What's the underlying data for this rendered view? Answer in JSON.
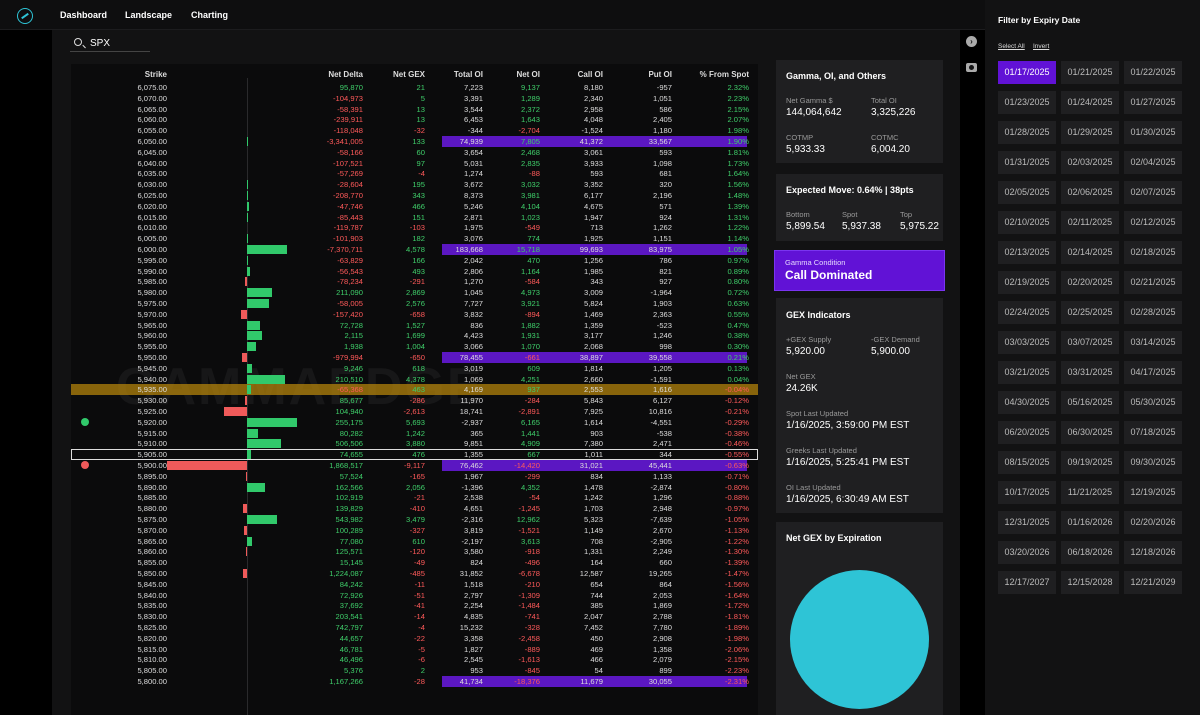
{
  "nav": {
    "tabs": [
      "Dashboard",
      "Landscape",
      "Charting"
    ]
  },
  "search": {
    "value": "SPX"
  },
  "table": {
    "headers": {
      "strike": "Strike",
      "net_delta": "Net Delta",
      "net_gex": "Net GEX",
      "total_oi": "Total OI",
      "net_oi": "Net OI",
      "call_oi": "Call OI",
      "put_oi": "Put OI",
      "pct_from_spot": "% From Spot"
    },
    "watermark": "GAMMAEDGE",
    "rows": [
      {
        "strike": "6,075.00",
        "nd": "95,870",
        "gex": "21",
        "toi": "7,223",
        "noi": "9,137",
        "coi": "8,180",
        "poi": "-957",
        "pct": "2.32%",
        "bar": 0
      },
      {
        "strike": "6,070.00",
        "nd": "-104,973",
        "gex": "5",
        "toi": "3,391",
        "noi": "1,289",
        "coi": "2,340",
        "poi": "1,051",
        "pct": "2.23%",
        "bar": 0
      },
      {
        "strike": "6,065.00",
        "nd": "-58,391",
        "gex": "13",
        "toi": "3,544",
        "noi": "2,372",
        "coi": "2,958",
        "poi": "586",
        "pct": "2.15%",
        "bar": 0
      },
      {
        "strike": "6,060.00",
        "nd": "-239,911",
        "gex": "13",
        "toi": "6,453",
        "noi": "1,643",
        "coi": "4,048",
        "poi": "2,405",
        "pct": "2.07%",
        "bar": 0
      },
      {
        "strike": "6,055.00",
        "nd": "-118,048",
        "gex": "-32",
        "toi": "-344",
        "noi": "-2,704",
        "coi": "-1,524",
        "poi": "1,180",
        "pct": "1.98%",
        "bar": 0
      },
      {
        "strike": "6,050.00",
        "nd": "-3,341,005",
        "gex": "133",
        "toi": "74,939",
        "noi": "7,805",
        "coi": "41,372",
        "poi": "33,567",
        "pct": "1.90%",
        "bar": 1,
        "hl": "purple"
      },
      {
        "strike": "6,045.00",
        "nd": "-58,166",
        "gex": "60",
        "toi": "3,654",
        "noi": "2,468",
        "coi": "3,061",
        "poi": "593",
        "pct": "1.81%",
        "bar": 0
      },
      {
        "strike": "6,040.00",
        "nd": "-107,521",
        "gex": "97",
        "toi": "5,031",
        "noi": "2,835",
        "coi": "3,933",
        "poi": "1,098",
        "pct": "1.73%",
        "bar": 0
      },
      {
        "strike": "6,035.00",
        "nd": "-57,269",
        "gex": "-4",
        "toi": "1,274",
        "noi": "-88",
        "coi": "593",
        "poi": "681",
        "pct": "1.64%",
        "bar": 0
      },
      {
        "strike": "6,030.00",
        "nd": "-28,604",
        "gex": "195",
        "toi": "3,672",
        "noi": "3,032",
        "coi": "3,352",
        "poi": "320",
        "pct": "1.56%",
        "bar": 1
      },
      {
        "strike": "6,025.00",
        "nd": "-208,770",
        "gex": "343",
        "toi": "8,373",
        "noi": "3,981",
        "coi": "6,177",
        "poi": "2,196",
        "pct": "1.48%",
        "bar": 1
      },
      {
        "strike": "6,020.00",
        "nd": "-47,746",
        "gex": "466",
        "toi": "5,246",
        "noi": "4,104",
        "coi": "4,675",
        "poi": "571",
        "pct": "1.39%",
        "bar": 2
      },
      {
        "strike": "6,015.00",
        "nd": "-85,443",
        "gex": "151",
        "toi": "2,871",
        "noi": "1,023",
        "coi": "1,947",
        "poi": "924",
        "pct": "1.31%",
        "bar": 1
      },
      {
        "strike": "6,010.00",
        "nd": "-119,787",
        "gex": "-103",
        "toi": "1,975",
        "noi": "-549",
        "coi": "713",
        "poi": "1,262",
        "pct": "1.22%",
        "bar": 0
      },
      {
        "strike": "6,005.00",
        "nd": "-101,903",
        "gex": "182",
        "toi": "3,076",
        "noi": "774",
        "coi": "1,925",
        "poi": "1,151",
        "pct": "1.14%",
        "bar": 1
      },
      {
        "strike": "6,000.00",
        "nd": "-7,370,711",
        "gex": "4,578",
        "toi": "183,668",
        "noi": "15,718",
        "coi": "99,693",
        "poi": "83,975",
        "pct": "1.05%",
        "bar": 40,
        "hl": "purple"
      },
      {
        "strike": "5,995.00",
        "nd": "-63,829",
        "gex": "166",
        "toi": "2,042",
        "noi": "470",
        "coi": "1,256",
        "poi": "786",
        "pct": "0.97%",
        "bar": 1
      },
      {
        "strike": "5,990.00",
        "nd": "-56,543",
        "gex": "493",
        "toi": "2,806",
        "noi": "1,164",
        "coi": "1,985",
        "poi": "821",
        "pct": "0.89%",
        "bar": 3
      },
      {
        "strike": "5,985.00",
        "nd": "-78,234",
        "gex": "-291",
        "toi": "1,270",
        "noi": "-584",
        "coi": "343",
        "poi": "927",
        "pct": "0.80%",
        "bar": -2
      },
      {
        "strike": "5,980.00",
        "nd": "211,090",
        "gex": "2,869",
        "toi": "1,045",
        "noi": "4,973",
        "coi": "3,009",
        "poi": "-1,964",
        "pct": "0.72%",
        "bar": 25
      },
      {
        "strike": "5,975.00",
        "nd": "-58,005",
        "gex": "2,576",
        "toi": "7,727",
        "noi": "3,921",
        "coi": "5,824",
        "poi": "1,903",
        "pct": "0.63%",
        "bar": 22
      },
      {
        "strike": "5,970.00",
        "nd": "-157,420",
        "gex": "-658",
        "toi": "3,832",
        "noi": "-894",
        "coi": "1,469",
        "poi": "2,363",
        "pct": "0.55%",
        "bar": -6
      },
      {
        "strike": "5,965.00",
        "nd": "72,728",
        "gex": "1,527",
        "toi": "836",
        "noi": "1,882",
        "coi": "1,359",
        "poi": "-523",
        "pct": "0.47%",
        "bar": 13
      },
      {
        "strike": "5,960.00",
        "nd": "2,115",
        "gex": "1,699",
        "toi": "4,423",
        "noi": "1,931",
        "coi": "3,177",
        "poi": "1,246",
        "pct": "0.38%",
        "bar": 15
      },
      {
        "strike": "5,955.00",
        "nd": "1,938",
        "gex": "1,004",
        "toi": "3,066",
        "noi": "1,070",
        "coi": "2,068",
        "poi": "998",
        "pct": "0.30%",
        "bar": 9
      },
      {
        "strike": "5,950.00",
        "nd": "-979,994",
        "gex": "-650",
        "toi": "78,455",
        "noi": "-661",
        "coi": "38,897",
        "poi": "39,558",
        "pct": "0.21%",
        "bar": -5,
        "hl": "purple"
      },
      {
        "strike": "5,945.00",
        "nd": "9,246",
        "gex": "618",
        "toi": "3,019",
        "noi": "609",
        "coi": "1,814",
        "poi": "1,205",
        "pct": "0.13%",
        "bar": 5
      },
      {
        "strike": "5,940.00",
        "nd": "210,510",
        "gex": "4,378",
        "toi": "1,069",
        "noi": "4,251",
        "coi": "2,660",
        "poi": "-1,591",
        "pct": "0.04%",
        "bar": 38
      },
      {
        "strike": "5,935.00",
        "nd": "-65,368",
        "gex": "463",
        "toi": "4,169",
        "noi": "937",
        "coi": "2,553",
        "poi": "1,616",
        "pct": "-0.04%",
        "bar": 4,
        "hl": "gold"
      },
      {
        "strike": "5,930.00",
        "nd": "85,677",
        "gex": "-286",
        "toi": "11,970",
        "noi": "-284",
        "coi": "5,843",
        "poi": "6,127",
        "pct": "-0.12%",
        "bar": -2
      },
      {
        "strike": "5,925.00",
        "nd": "104,940",
        "gex": "-2,613",
        "toi": "18,741",
        "noi": "-2,891",
        "coi": "7,925",
        "poi": "10,816",
        "pct": "-0.21%",
        "bar": -23
      },
      {
        "strike": "5,920.00",
        "nd": "255,175",
        "gex": "5,693",
        "toi": "-2,937",
        "noi": "6,165",
        "coi": "1,614",
        "poi": "-4,551",
        "pct": "-0.29%",
        "bar": 50,
        "dot": "green"
      },
      {
        "strike": "5,915.00",
        "nd": "80,282",
        "gex": "1,242",
        "toi": "365",
        "noi": "1,441",
        "coi": "903",
        "poi": "-538",
        "pct": "-0.38%",
        "bar": 11
      },
      {
        "strike": "5,910.00",
        "nd": "506,506",
        "gex": "3,880",
        "toi": "9,851",
        "noi": "4,909",
        "coi": "7,380",
        "poi": "2,471",
        "pct": "-0.46%",
        "bar": 34
      },
      {
        "strike": "5,905.00",
        "nd": "74,655",
        "gex": "476",
        "toi": "1,355",
        "noi": "667",
        "coi": "1,011",
        "poi": "344",
        "pct": "-0.55%",
        "bar": 4,
        "box": true
      },
      {
        "strike": "5,900.00",
        "nd": "1,868,517",
        "gex": "-9,117",
        "toi": "76,462",
        "noi": "-14,420",
        "coi": "31,021",
        "poi": "45,441",
        "pct": "-0.63%",
        "bar": -80,
        "hl": "purple",
        "dot": "red"
      },
      {
        "strike": "5,895.00",
        "nd": "57,524",
        "gex": "-165",
        "toi": "1,967",
        "noi": "-299",
        "coi": "834",
        "poi": "1,133",
        "pct": "-0.71%",
        "bar": -1
      },
      {
        "strike": "5,890.00",
        "nd": "162,566",
        "gex": "2,056",
        "toi": "-1,396",
        "noi": "4,352",
        "coi": "1,478",
        "poi": "-2,874",
        "pct": "-0.80%",
        "bar": 18
      },
      {
        "strike": "5,885.00",
        "nd": "102,919",
        "gex": "-21",
        "toi": "2,538",
        "noi": "-54",
        "coi": "1,242",
        "poi": "1,296",
        "pct": "-0.88%",
        "bar": 0
      },
      {
        "strike": "5,880.00",
        "nd": "139,829",
        "gex": "-410",
        "toi": "4,651",
        "noi": "-1,245",
        "coi": "1,703",
        "poi": "2,948",
        "pct": "-0.97%",
        "bar": -4
      },
      {
        "strike": "5,875.00",
        "nd": "543,982",
        "gex": "3,479",
        "toi": "-2,316",
        "noi": "12,962",
        "coi": "5,323",
        "poi": "-7,639",
        "pct": "-1.05%",
        "bar": 30
      },
      {
        "strike": "5,870.00",
        "nd": "100,289",
        "gex": "-327",
        "toi": "3,819",
        "noi": "-1,521",
        "coi": "1,149",
        "poi": "2,670",
        "pct": "-1.13%",
        "bar": -3
      },
      {
        "strike": "5,865.00",
        "nd": "77,080",
        "gex": "610",
        "toi": "-2,197",
        "noi": "3,613",
        "coi": "708",
        "poi": "-2,905",
        "pct": "-1.22%",
        "bar": 5
      },
      {
        "strike": "5,860.00",
        "nd": "125,571",
        "gex": "-120",
        "toi": "3,580",
        "noi": "-918",
        "coi": "1,331",
        "poi": "2,249",
        "pct": "-1.30%",
        "bar": -1
      },
      {
        "strike": "5,855.00",
        "nd": "15,145",
        "gex": "-49",
        "toi": "824",
        "noi": "-496",
        "coi": "164",
        "poi": "660",
        "pct": "-1.39%",
        "bar": 0
      },
      {
        "strike": "5,850.00",
        "nd": "1,224,087",
        "gex": "-485",
        "toi": "31,852",
        "noi": "-6,678",
        "coi": "12,587",
        "poi": "19,265",
        "pct": "-1.47%",
        "bar": -4
      },
      {
        "strike": "5,845.00",
        "nd": "84,242",
        "gex": "-11",
        "toi": "1,518",
        "noi": "-210",
        "coi": "654",
        "poi": "864",
        "pct": "-1.56%",
        "bar": 0
      },
      {
        "strike": "5,840.00",
        "nd": "72,926",
        "gex": "-51",
        "toi": "2,797",
        "noi": "-1,309",
        "coi": "744",
        "poi": "2,053",
        "pct": "-1.64%",
        "bar": 0
      },
      {
        "strike": "5,835.00",
        "nd": "37,692",
        "gex": "-41",
        "toi": "2,254",
        "noi": "-1,484",
        "coi": "385",
        "poi": "1,869",
        "pct": "-1.72%",
        "bar": 0
      },
      {
        "strike": "5,830.00",
        "nd": "203,541",
        "gex": "-14",
        "toi": "4,835",
        "noi": "-741",
        "coi": "2,047",
        "poi": "2,788",
        "pct": "-1.81%",
        "bar": 0
      },
      {
        "strike": "5,825.00",
        "nd": "742,797",
        "gex": "-4",
        "toi": "15,232",
        "noi": "-328",
        "coi": "7,452",
        "poi": "7,780",
        "pct": "-1.89%",
        "bar": 0
      },
      {
        "strike": "5,820.00",
        "nd": "44,657",
        "gex": "-22",
        "toi": "3,358",
        "noi": "-2,458",
        "coi": "450",
        "poi": "2,908",
        "pct": "-1.98%",
        "bar": 0
      },
      {
        "strike": "5,815.00",
        "nd": "46,781",
        "gex": "-5",
        "toi": "1,827",
        "noi": "-889",
        "coi": "469",
        "poi": "1,358",
        "pct": "-2.06%",
        "bar": 0
      },
      {
        "strike": "5,810.00",
        "nd": "46,496",
        "gex": "-6",
        "toi": "2,545",
        "noi": "-1,613",
        "coi": "466",
        "poi": "2,079",
        "pct": "-2.15%",
        "bar": 0
      },
      {
        "strike": "5,805.00",
        "nd": "5,376",
        "gex": "2",
        "toi": "953",
        "noi": "-845",
        "coi": "54",
        "poi": "899",
        "pct": "-2.23%",
        "bar": 0
      },
      {
        "strike": "5,800.00",
        "nd": "1,167,266",
        "gex": "-28",
        "toi": "41,734",
        "noi": "-18,376",
        "coi": "11,679",
        "poi": "30,055",
        "pct": "-2.31%",
        "bar": 0,
        "hl": "purple"
      }
    ]
  },
  "gamma_card": {
    "title": "Gamma, OI, and Others",
    "net_gamma_label": "Net Gamma $",
    "net_gamma": "144,064,642",
    "total_oi_label": "Total OI",
    "total_oi": "3,325,226",
    "cotmp_label": "COTMP",
    "cotmp": "5,933.33",
    "cotmc_label": "COTMC",
    "cotmc": "6,004.20"
  },
  "expected_move": {
    "title": "Expected Move: 0.64% | 38pts",
    "bottom_label": "Bottom",
    "bottom": "5,899.54",
    "spot_label": "Spot",
    "spot": "5,937.38",
    "top_label": "Top",
    "top": "5,975.22"
  },
  "gamma_condition": {
    "label": "Gamma Condition",
    "value": "Call Dominated"
  },
  "gex_indicators": {
    "title": "GEX Indicators",
    "supply_label": "+GEX Supply",
    "supply": "5,920.00",
    "demand_label": "-GEX Demand",
    "demand": "5,900.00",
    "net_gex_label": "Net GEX",
    "net_gex": "24.26K",
    "spot_updated_label": "Spot Last Updated",
    "spot_updated": "1/16/2025, 3:59:00 PM EST",
    "greeks_updated_label": "Greeks Last Updated",
    "greeks_updated": "1/16/2025, 5:25:41 PM EST",
    "oi_updated_label": "OI Last Updated",
    "oi_updated": "1/16/2025, 6:30:49 AM EST"
  },
  "net_gex_expiration": {
    "title": "Net GEX by Expiration",
    "color": "#2ec4d6"
  },
  "filter": {
    "title": "Filter by Expiry Date",
    "select_all": "Select All",
    "invert": "Invert",
    "selected": "01/17/2025",
    "dates": [
      "01/17/2025",
      "01/21/2025",
      "01/22/2025",
      "01/23/2025",
      "01/24/2025",
      "01/27/2025",
      "01/28/2025",
      "01/29/2025",
      "01/30/2025",
      "01/31/2025",
      "02/03/2025",
      "02/04/2025",
      "02/05/2025",
      "02/06/2025",
      "02/07/2025",
      "02/10/2025",
      "02/11/2025",
      "02/12/2025",
      "02/13/2025",
      "02/14/2025",
      "02/18/2025",
      "02/19/2025",
      "02/20/2025",
      "02/21/2025",
      "02/24/2025",
      "02/25/2025",
      "02/28/2025",
      "03/03/2025",
      "03/07/2025",
      "03/14/2025",
      "03/21/2025",
      "03/31/2025",
      "04/17/2025",
      "04/30/2025",
      "05/16/2025",
      "05/30/2025",
      "06/20/2025",
      "06/30/2025",
      "07/18/2025",
      "08/15/2025",
      "09/19/2025",
      "09/30/2025",
      "10/17/2025",
      "11/21/2025",
      "12/19/2025",
      "12/31/2025",
      "01/16/2026",
      "02/20/2026",
      "03/20/2026",
      "06/18/2026",
      "12/18/2026",
      "12/17/2027",
      "12/15/2028",
      "12/21/2029"
    ]
  },
  "icons": {
    "logo": "gammaedge-logo-icon",
    "search": "search-icon",
    "help": "help-circle-icon",
    "camera": "camera-icon"
  },
  "colors": {
    "accent": "#6112d6",
    "positive": "#3fce6a",
    "negative": "#ff5a5a",
    "highlight": "#b8860b",
    "pie": "#2ec4d6"
  }
}
